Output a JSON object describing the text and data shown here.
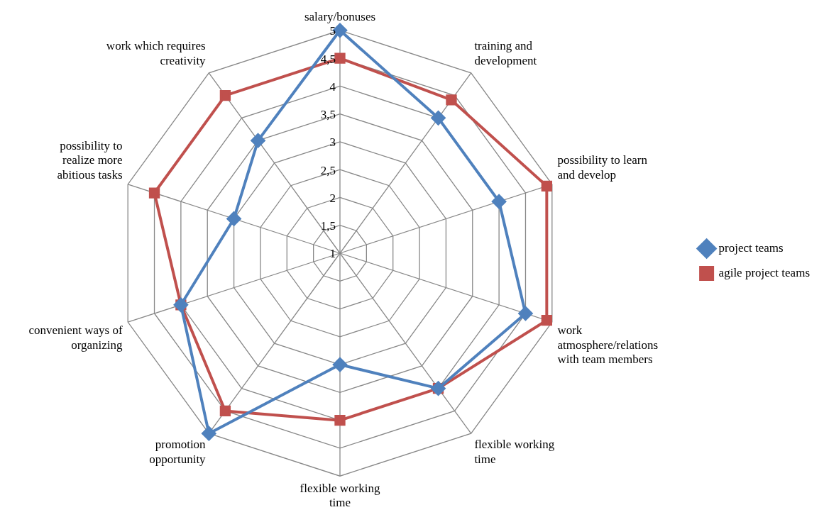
{
  "chart_data": {
    "type": "radar",
    "categories": [
      "salary/bonuses",
      "training and development",
      "possibility to learn and develop",
      "work atmosphere/relations with team members",
      "flexible working time",
      "flexible working time",
      "promotion opportunity",
      "convenient ways of organizing",
      "possibility to realize more abitious tasks",
      "work which requires creativity"
    ],
    "series": [
      {
        "name": "project teams",
        "color": "#4f81bd",
        "marker": "diamond",
        "values": [
          5,
          4,
          4,
          4.5,
          4,
          3,
          5,
          4,
          3,
          3.5
        ]
      },
      {
        "name": "agile project teams",
        "color": "#c0504d",
        "marker": "square",
        "values": [
          4.5,
          4.4,
          4.9,
          4.9,
          4,
          4,
          4.5,
          4,
          4.5,
          4.5
        ]
      }
    ],
    "ylim": [
      1,
      5
    ],
    "yticks": [
      1,
      {
        "value": 1.5,
        "label": "1,5"
      },
      2,
      {
        "value": 2.5,
        "label": "2,5"
      },
      3,
      {
        "value": 3.5,
        "label": "3,5"
      },
      4,
      {
        "value": 4.5,
        "label": "4,5"
      },
      5
    ],
    "grid": true,
    "legend": "right"
  }
}
